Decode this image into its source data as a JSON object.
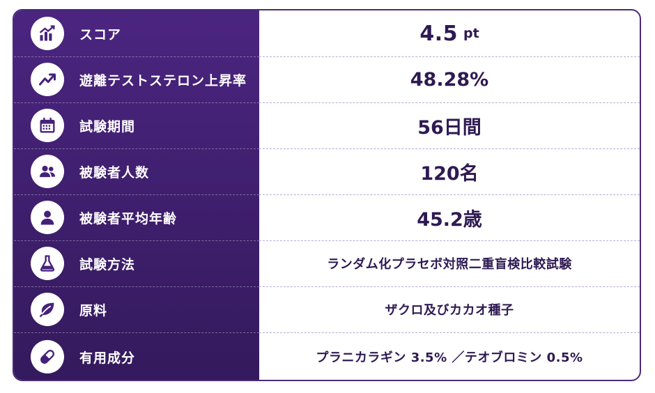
{
  "rows": [
    {
      "icon": "bar-chart-icon",
      "label": "スコア",
      "value": "4.5",
      "unit": "pt"
    },
    {
      "icon": "trending-up-icon",
      "label": "遊離テストステロン上昇率",
      "value": "48.28%"
    },
    {
      "icon": "calendar-icon",
      "label": "試験期間",
      "value": "56日間"
    },
    {
      "icon": "users-icon",
      "label": "被験者人数",
      "value": "120名"
    },
    {
      "icon": "user-icon",
      "label": "被験者平均年齢",
      "value": "45.2歳"
    },
    {
      "icon": "flask-icon",
      "label": "試験方法",
      "value": "ランダム化プラセボ対照二重盲検比較試験"
    },
    {
      "icon": "leaf-icon",
      "label": "原料",
      "value": "ザクロ及びカカオ種子"
    },
    {
      "icon": "capsule-icon",
      "label": "有用成分",
      "value": "プラニカラギン 3.5% ／テオブロミン 0.5%"
    }
  ],
  "colors": {
    "panel": "#44227a",
    "value_text": "#2e1a52",
    "divider": "#b9a9d6"
  }
}
